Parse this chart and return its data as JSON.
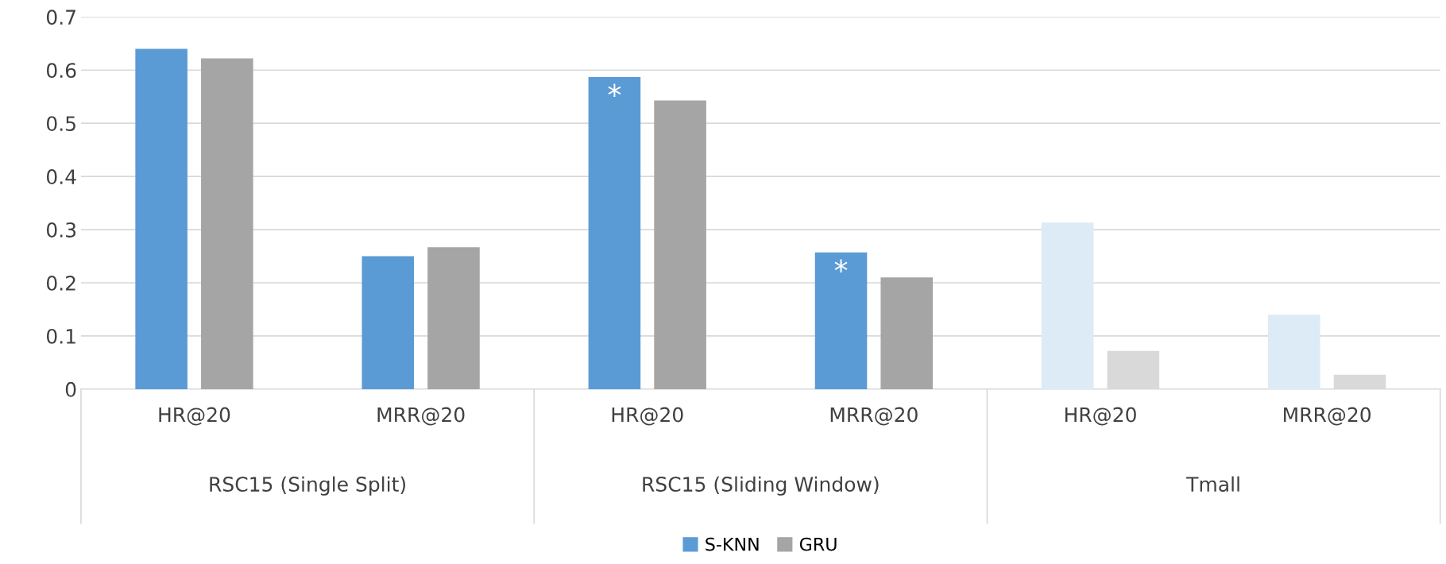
{
  "chart_data": {
    "type": "bar",
    "categories": [
      "HR@20",
      "MRR@20",
      "HR@20",
      "MRR@20",
      "HR@20",
      "MRR@20"
    ],
    "series": [
      {
        "name": "S-KNN",
        "color": "#5b9bd5",
        "colors": [
          "#5b9bd5",
          "#5b9bd5",
          "#5b9bd5",
          "#5b9bd5",
          "#ddebf7",
          "#ddebf7"
        ],
        "values": [
          0.64,
          0.25,
          0.587,
          0.257,
          0.313,
          0.14
        ],
        "value_labels": [
          null,
          null,
          "*",
          "*",
          null,
          null
        ]
      },
      {
        "name": "GRU",
        "color": "#a5a5a5",
        "colors": [
          "#a5a5a5",
          "#a5a5a5",
          "#a5a5a5",
          "#a5a5a5",
          "#d9d9d9",
          "#d9d9d9"
        ],
        "values": [
          0.622,
          0.267,
          0.543,
          0.21,
          0.072,
          0.027
        ]
      }
    ],
    "annotations": [
      "RSC15 (Single Split)",
      "RSC15 (Sliding Window)",
      "Tmall"
    ],
    "ylim": [
      0,
      0.7
    ],
    "yticks": [
      {
        "value": 0,
        "label": "0"
      },
      0.1,
      0.2,
      0.3,
      0.4,
      0.5,
      0.6,
      0.7
    ],
    "grid": "y",
    "legend": "bottom"
  }
}
